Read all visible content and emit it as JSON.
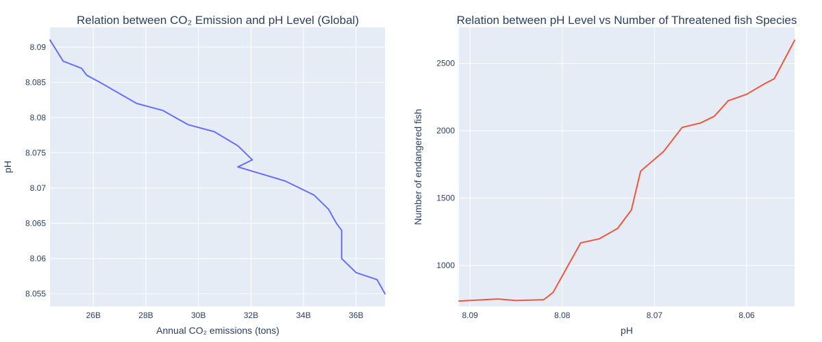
{
  "chart_data": [
    {
      "type": "line",
      "title": "Relation between CO₂ Emission and pH Level (Global)",
      "xlabel": "Annual CO₂ emissions (tons)",
      "ylabel": "pH",
      "xlim": [
        24.35,
        37.1
      ],
      "ylim": [
        8.0532,
        8.0928
      ],
      "xticks": [
        26,
        28,
        30,
        32,
        34,
        36
      ],
      "xtick_labels": [
        "26B",
        "28B",
        "30B",
        "32B",
        "34B",
        "36B"
      ],
      "yticks": [
        8.055,
        8.06,
        8.065,
        8.07,
        8.075,
        8.08,
        8.085,
        8.09
      ],
      "ytick_labels": [
        "8.055",
        "8.06",
        "8.065",
        "8.07",
        "8.075",
        "8.08",
        "8.085",
        "8.09"
      ],
      "line_color": "#636efa",
      "series": [
        {
          "name": "pH",
          "x": [
            24.35,
            24.85,
            25.55,
            25.75,
            26.25,
            27.65,
            28.65,
            29.6,
            30.6,
            31.5,
            32.05,
            31.5,
            33.3,
            34.4,
            34.95,
            35.25,
            35.45,
            35.45,
            36.0,
            36.8,
            37.1
          ],
          "y": [
            8.091,
            8.088,
            8.087,
            8.086,
            8.085,
            8.082,
            8.081,
            8.079,
            8.078,
            8.076,
            8.074,
            8.073,
            8.071,
            8.069,
            8.067,
            8.065,
            8.064,
            8.06,
            8.058,
            8.057,
            8.055
          ]
        }
      ]
    },
    {
      "type": "line",
      "title": "Relation between pH Level vs Number of Threatened fish Species",
      "xlabel": "pH",
      "ylabel": "Number of endangered fish",
      "xlim": [
        8.0912,
        8.0548
      ],
      "ylim": [
        697,
        2766
      ],
      "xticks": [
        8.09,
        8.08,
        8.07,
        8.06
      ],
      "xtick_labels": [
        "8.09",
        "8.08",
        "8.07",
        "8.06"
      ],
      "yticks": [
        1000,
        1500,
        2000,
        2500
      ],
      "ytick_labels": [
        "1000",
        "1500",
        "2000",
        "2500"
      ],
      "line_color": "#ef553b",
      "series": [
        {
          "name": "endangered fish",
          "x": [
            8.0912,
            8.087,
            8.085,
            8.082,
            8.081,
            8.078,
            8.076,
            8.074,
            8.0725,
            8.0715,
            8.069,
            8.067,
            8.065,
            8.0635,
            8.062,
            8.06,
            8.058,
            8.057,
            8.0548
          ],
          "y": [
            737,
            752,
            741,
            747,
            800,
            1168,
            1198,
            1275,
            1412,
            1700,
            1846,
            2024,
            2057,
            2107,
            2222,
            2270,
            2350,
            2385,
            2670
          ]
        }
      ]
    }
  ]
}
